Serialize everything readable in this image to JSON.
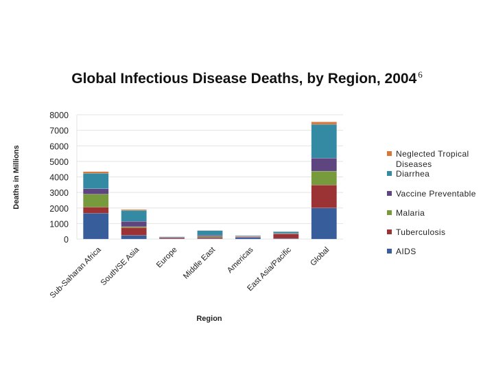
{
  "chart_data": {
    "type": "bar",
    "stacked": true,
    "title": "Global Infectious Disease Deaths, by Region, 2004",
    "title_superscript": "6",
    "xlabel": "Region",
    "ylabel": "Deaths in Millions",
    "ylim": [
      0,
      8000
    ],
    "yticks": [
      0,
      1000,
      2000,
      3000,
      4000,
      5000,
      6000,
      7000,
      8000
    ],
    "grid": true,
    "legend_placement": "right",
    "categories": [
      "Sub-Saharan Africa",
      "South/SE Asia",
      "Europe",
      "Middle East",
      "Americas",
      "East Asia/Pacific",
      "Global"
    ],
    "series": [
      {
        "name": "AIDS",
        "color": "#385d9b",
        "values": [
          1660,
          240,
          40,
          40,
          100,
          40,
          2000
        ]
      },
      {
        "name": "Tuberculosis",
        "color": "#9b3334",
        "values": [
          400,
          500,
          70,
          80,
          40,
          300,
          1480
        ]
      },
      {
        "name": "Malaria",
        "color": "#779a3d",
        "values": [
          830,
          60,
          0,
          60,
          10,
          10,
          890
        ]
      },
      {
        "name": "Vaccine Preventable",
        "color": "#5e4580",
        "values": [
          350,
          340,
          10,
          70,
          30,
          10,
          840
        ]
      },
      {
        "name": "Diarrhea",
        "color": "#3489a3",
        "values": [
          990,
          700,
          30,
          300,
          40,
          120,
          2170
        ]
      },
      {
        "name": "Neglected Tropical Diseases",
        "color": "#d8773a",
        "values": [
          110,
          60,
          0,
          10,
          20,
          10,
          160
        ]
      }
    ]
  }
}
